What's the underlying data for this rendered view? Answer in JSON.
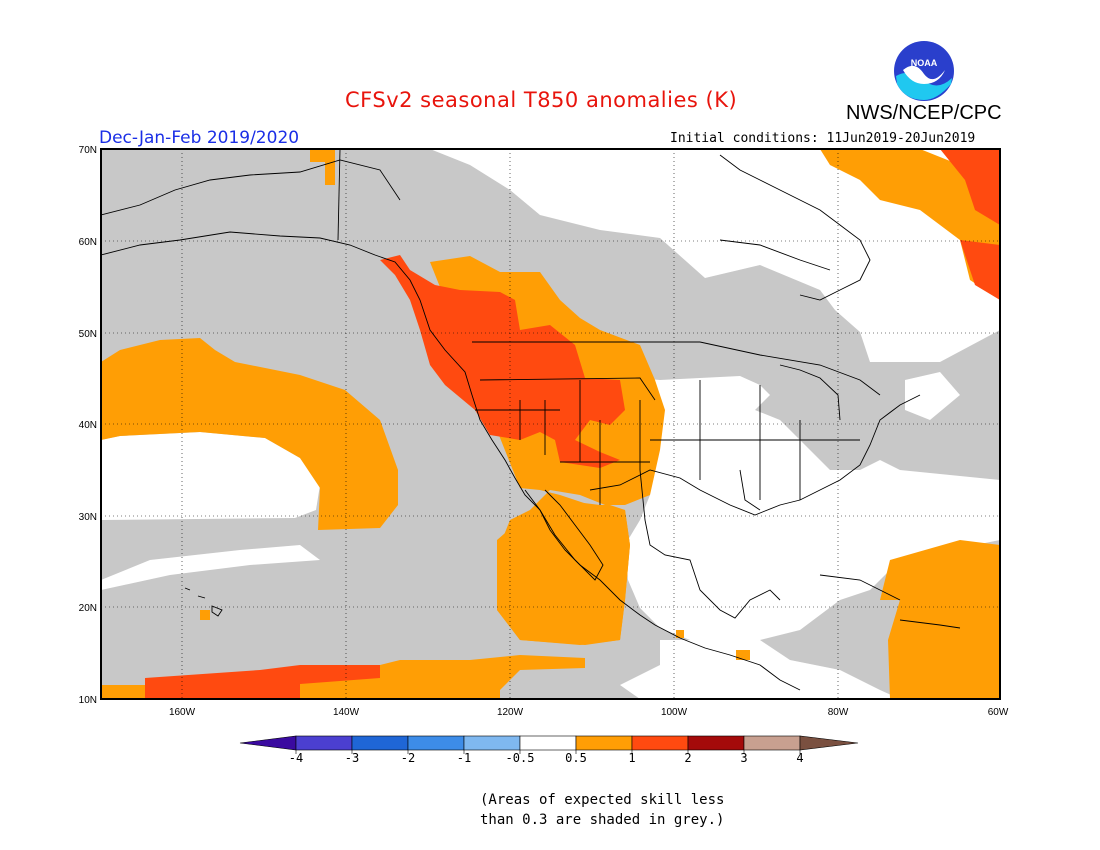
{
  "header": {
    "title": "CFSv2 seasonal T850 anomalies (K)",
    "org": "NWS/NCEP/CPC",
    "logo_text": "NOAA",
    "season": "Dec-Jan-Feb 2019/2020",
    "initial_conditions": "Initial conditions: 11Jun2019-20Jun2019"
  },
  "axes": {
    "lat_labels": [
      "70N",
      "60N",
      "50N",
      "40N",
      "30N",
      "20N",
      "10N"
    ],
    "lon_labels": [
      "160W",
      "140W",
      "120W",
      "100W",
      "80W",
      "60W"
    ]
  },
  "colorbar": {
    "tick_labels": [
      "-4",
      "-3",
      "-2",
      "-1",
      "-0.5",
      "0.5",
      "1",
      "2",
      "3",
      "4"
    ],
    "colors": [
      "#3a0aa0",
      "#4b3fd0",
      "#1f66d6",
      "#3d8ce8",
      "#7fb8f0",
      "#ffffff",
      "#ff9e05",
      "#ff4a10",
      "#a40a0a",
      "#c8a090",
      "#7a5040"
    ]
  },
  "legend_colors": {
    "grey_skill": "#c8c8c8",
    "above_05": "#ff9e05",
    "above_1": "#ff4a10"
  },
  "footnote": {
    "line1": "(Areas of expected skill less",
    "line2": "than 0.3 are shaded in grey.)"
  }
}
